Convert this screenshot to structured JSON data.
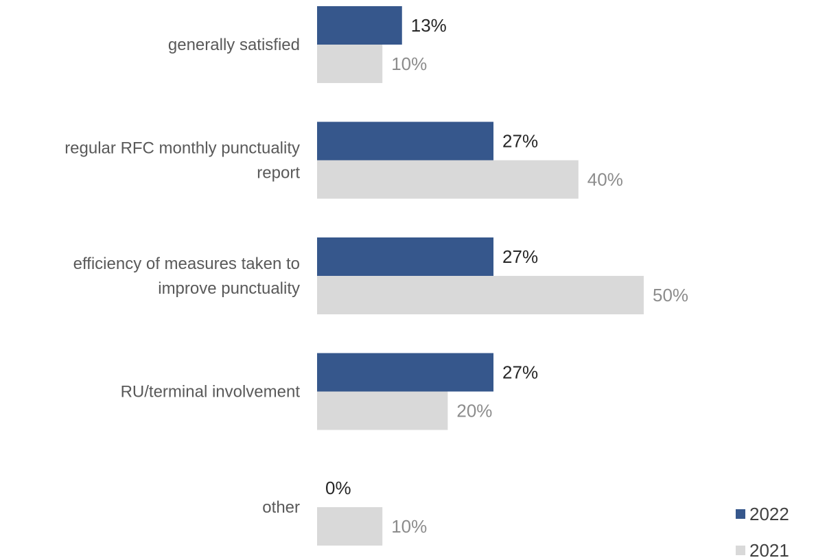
{
  "chart_data": {
    "type": "bar",
    "orientation": "horizontal",
    "categories": [
      "generally satisfied",
      "regular RFC monthly punctuality report",
      "efficiency of measures taken to improve punctuality",
      "RU/terminal involvement",
      "other"
    ],
    "category_lines": [
      [
        "generally satisfied"
      ],
      [
        "regular RFC monthly punctuality",
        "report"
      ],
      [
        "efficiency of measures taken to",
        "improve punctuality"
      ],
      [
        "RU/terminal involvement"
      ],
      [
        "other"
      ]
    ],
    "series": [
      {
        "name": "2022",
        "color": "#36578c",
        "label_color": "#262626",
        "values": [
          13,
          27,
          27,
          27,
          0
        ],
        "labels": [
          "13%",
          "27%",
          "27%",
          "27%",
          "0%"
        ]
      },
      {
        "name": "2021",
        "color": "#d9d9d9",
        "label_color": "#8c8c8c",
        "values": [
          10,
          40,
          50,
          20,
          10
        ],
        "labels": [
          "10%",
          "40%",
          "50%",
          "20%",
          "10%"
        ]
      }
    ],
    "unit": "%",
    "xlim": [
      0,
      77
    ],
    "grid": false,
    "axes_visible": false,
    "legend": {
      "placement": "bottom-right",
      "entries": [
        "2022",
        "2021"
      ]
    }
  }
}
